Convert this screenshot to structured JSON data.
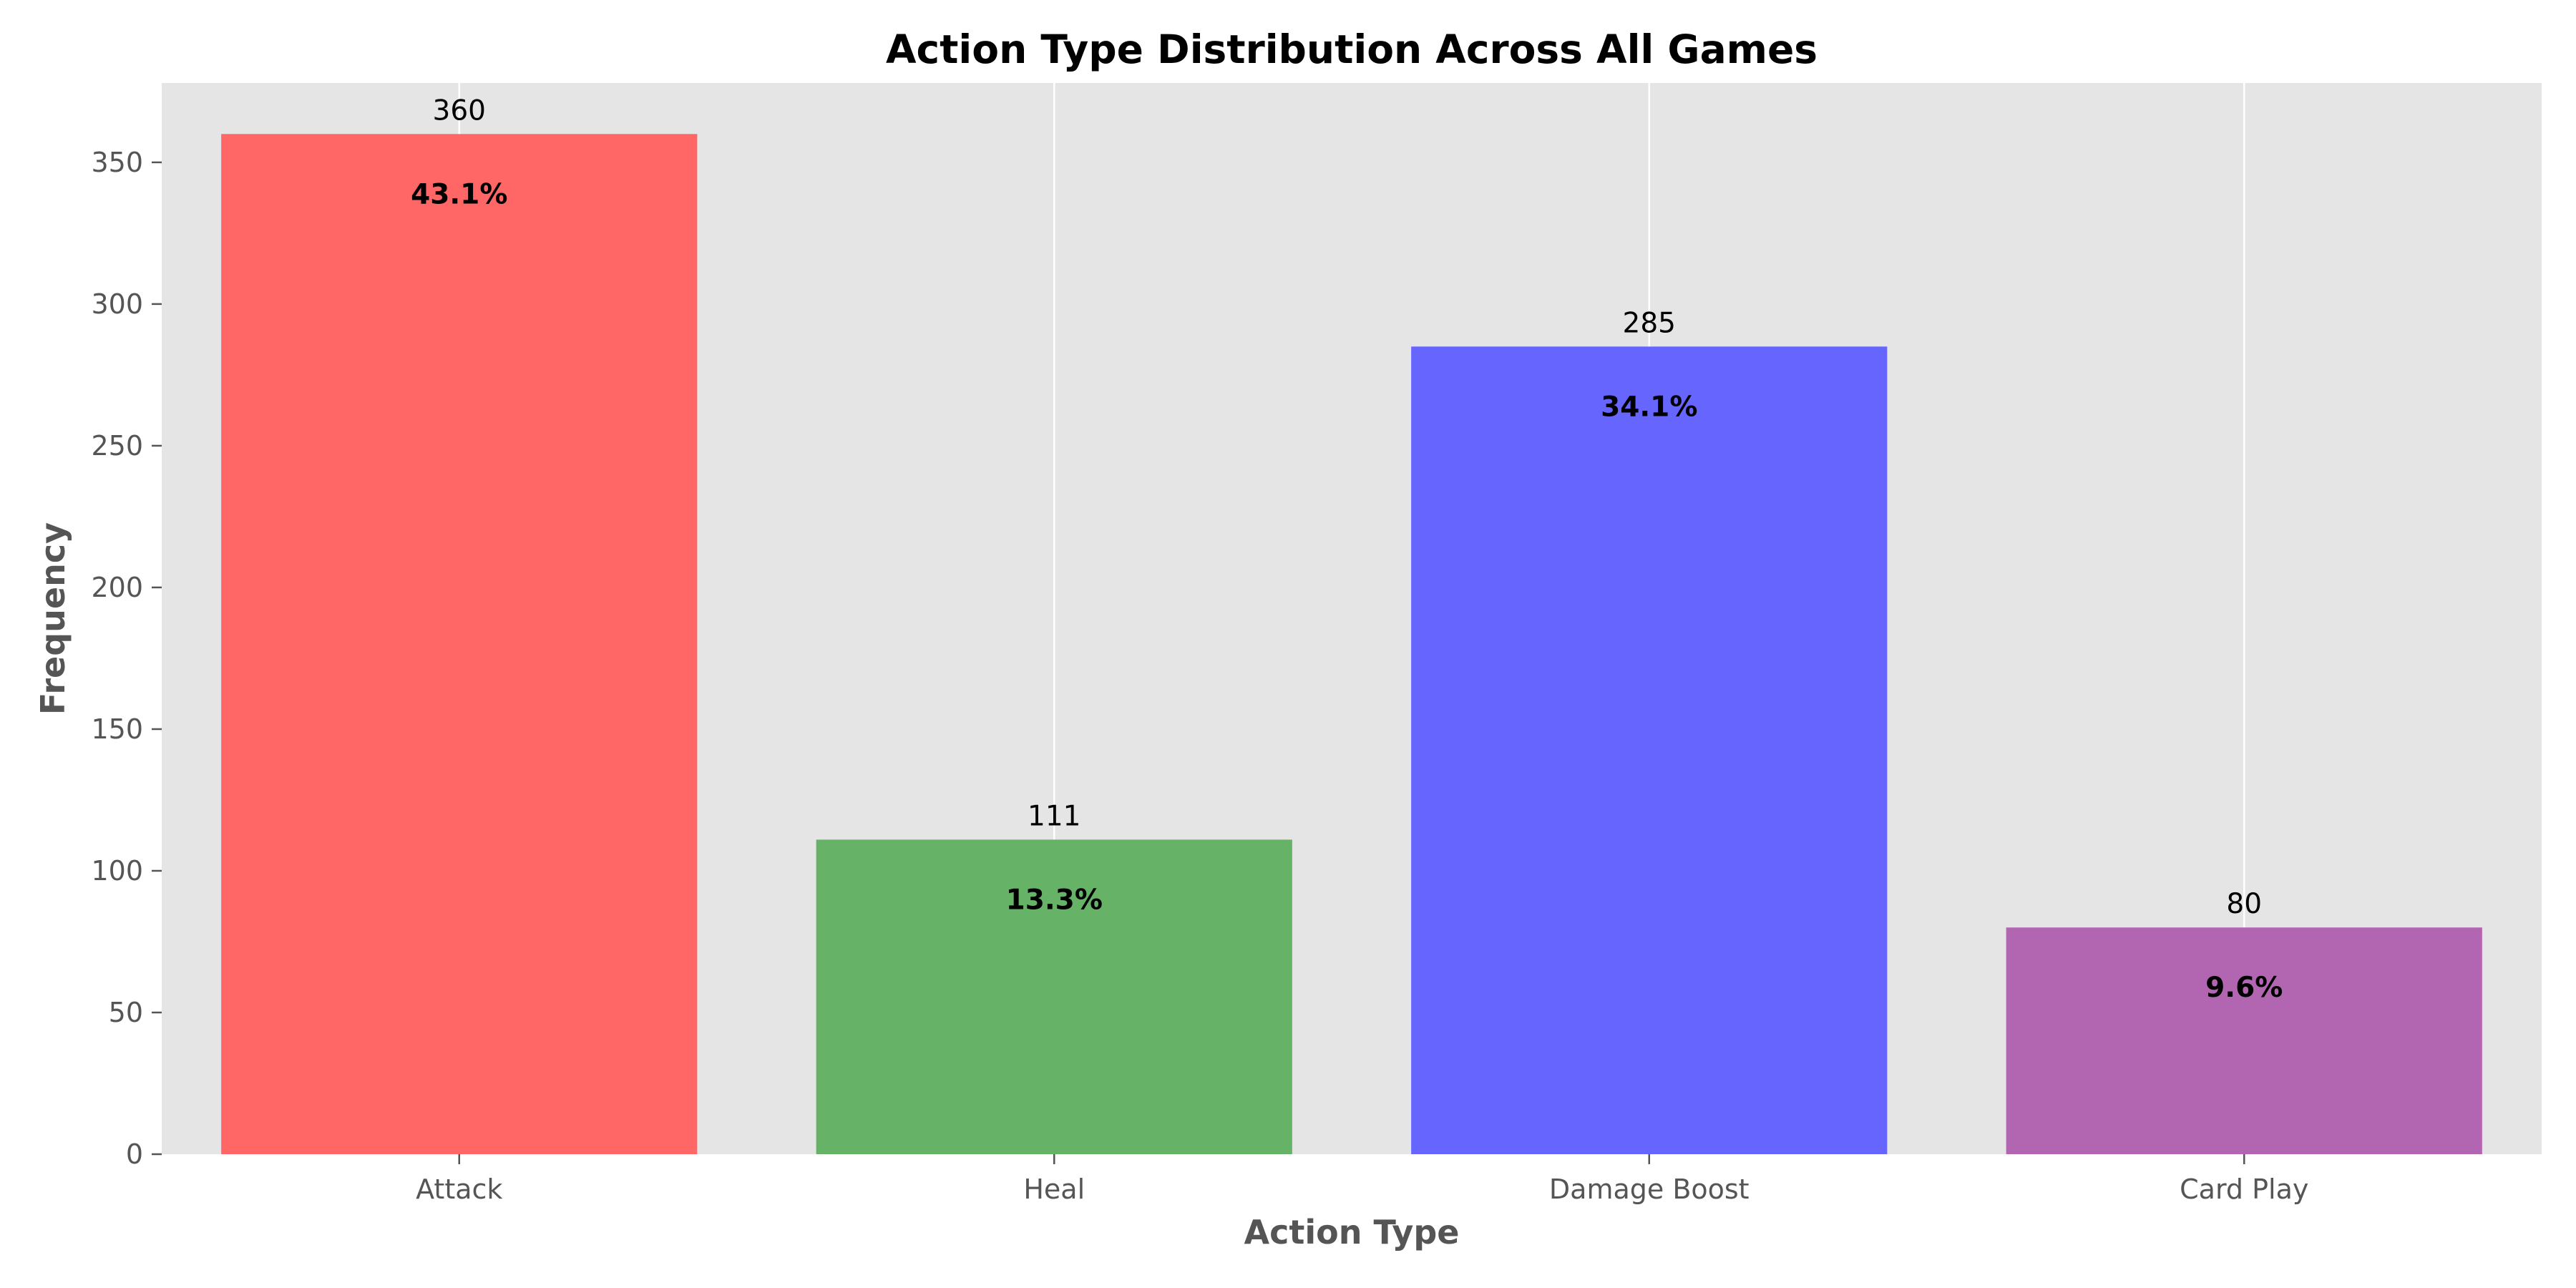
{
  "chart_data": {
    "type": "bar",
    "title": "Action Type Distribution Across All Games",
    "xlabel": "Action Type",
    "ylabel": "Frequency",
    "categories": [
      "Attack",
      "Heal",
      "Damage Boost",
      "Card Play"
    ],
    "values": [
      360,
      111,
      285,
      80
    ],
    "value_labels": [
      "360",
      "111",
      "285",
      "80"
    ],
    "percent_labels": [
      "43.1%",
      "13.3%",
      "34.1%",
      "9.6%"
    ],
    "colors": [
      "#ff6666",
      "#66b266",
      "#6666ff",
      "#b266b2"
    ],
    "ylim": [
      0,
      378
    ],
    "yticks": [
      0,
      50,
      100,
      150,
      200,
      250,
      300,
      350
    ],
    "ytick_labels": [
      "0",
      "50",
      "100",
      "150",
      "200",
      "250",
      "300",
      "350"
    ],
    "grid": true,
    "grid_axis": "x",
    "background_color": "#e5e5e5",
    "grid_color": "#ffffff"
  }
}
